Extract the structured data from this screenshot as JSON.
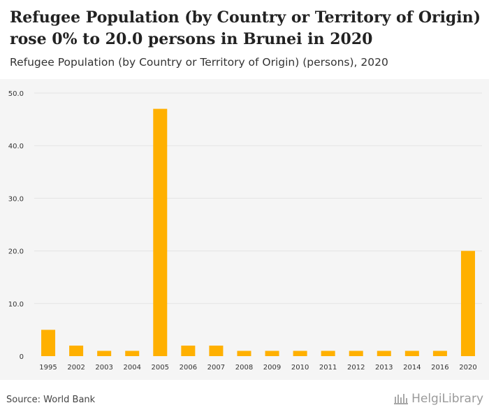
{
  "header": {
    "title": "Refugee Population (by Country or Territory of Origin) rose 0% to 20.0 persons in Brunei in 2020",
    "subtitle": "Refugee Population (by Country or Territory of Origin) (persons), 2020"
  },
  "footer": {
    "source": "Source: World Bank",
    "brand": "HelgiLibrary"
  },
  "colors": {
    "bar": "#FFB000",
    "grid": "#e4e4e4",
    "axis_text": "#333333",
    "plot_bg": "#f5f5f5"
  },
  "chart_data": {
    "type": "bar",
    "title": "Refugee Population (by Country or Territory of Origin) (persons), 2020",
    "xlabel": "",
    "ylabel": "",
    "categories": [
      "1995",
      "2002",
      "2003",
      "2004",
      "2005",
      "2006",
      "2007",
      "2008",
      "2009",
      "2010",
      "2011",
      "2012",
      "2013",
      "2014",
      "2016",
      "2020"
    ],
    "values": [
      5,
      2,
      1,
      1,
      47,
      2,
      2,
      1,
      1,
      1,
      1,
      1,
      1,
      1,
      1,
      20
    ],
    "ylim": [
      0,
      50
    ],
    "yticks": [
      "0",
      "10.0",
      "20.0",
      "30.0",
      "40.0",
      "50.0"
    ],
    "grid": true,
    "legend": "none"
  }
}
